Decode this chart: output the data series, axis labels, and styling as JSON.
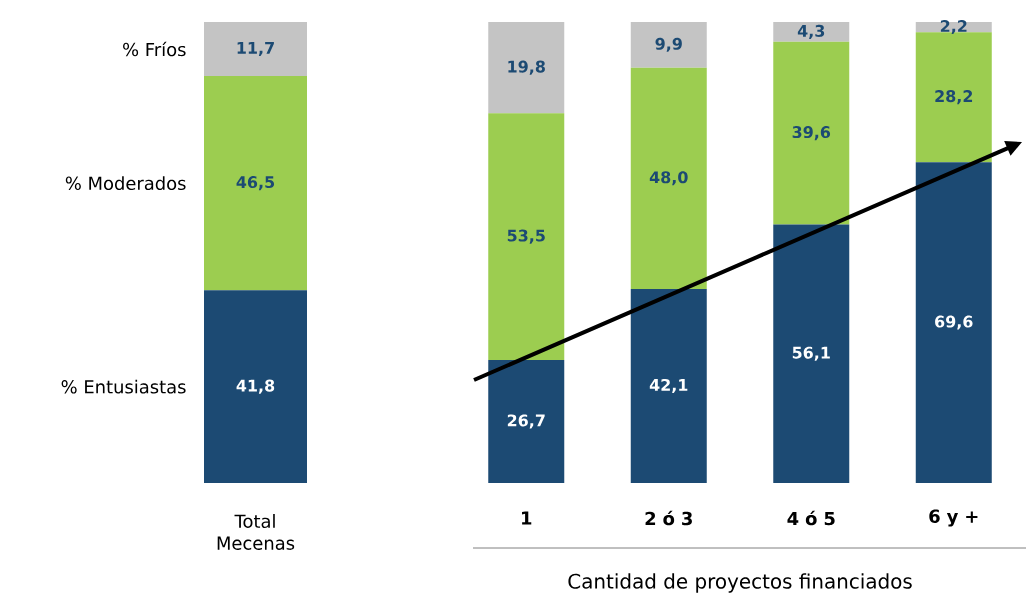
{
  "chart_data": [
    {
      "type": "bar",
      "stacked": true,
      "categories": [
        "Total Mecenas"
      ],
      "series": [
        {
          "name": "% Entusiastas",
          "color": "#1c4a73",
          "values": [
            41.8
          ],
          "value_labels": [
            "41,8"
          ]
        },
        {
          "name": "% Moderados",
          "color": "#9ccd50",
          "values": [
            46.5
          ],
          "value_labels": [
            "46,5"
          ]
        },
        {
          "name": "% Fríos",
          "color": "#c4c4c4",
          "values": [
            11.7
          ],
          "value_labels": [
            "11,7"
          ]
        }
      ]
    },
    {
      "type": "bar",
      "stacked": true,
      "xlabel": "Cantidad de proyectos financiados",
      "categories": [
        "**1**",
        "**2 ó 3**",
        "**4 ó 5**",
        "**6 y +**"
      ],
      "series": [
        {
          "color": "#1c4a73",
          "values": [
            26.7,
            42.1,
            56.1,
            69.6
          ],
          "value_labels": [
            "26,7",
            "42,1",
            "56,1",
            "69,6"
          ]
        },
        {
          "color": "#9ccd50",
          "values": [
            53.5,
            48.0,
            39.6,
            28.2
          ],
          "value_labels": [
            "53,5",
            "48,0",
            "39,6",
            "28,2"
          ]
        },
        {
          "color": "#c4c4c4",
          "values": [
            19.8,
            9.9,
            4.3,
            2.2
          ],
          "value_labels": [
            "19,8",
            "9,9",
            "4,3",
            "2,2"
          ]
        }
      ]
    }
  ]
}
